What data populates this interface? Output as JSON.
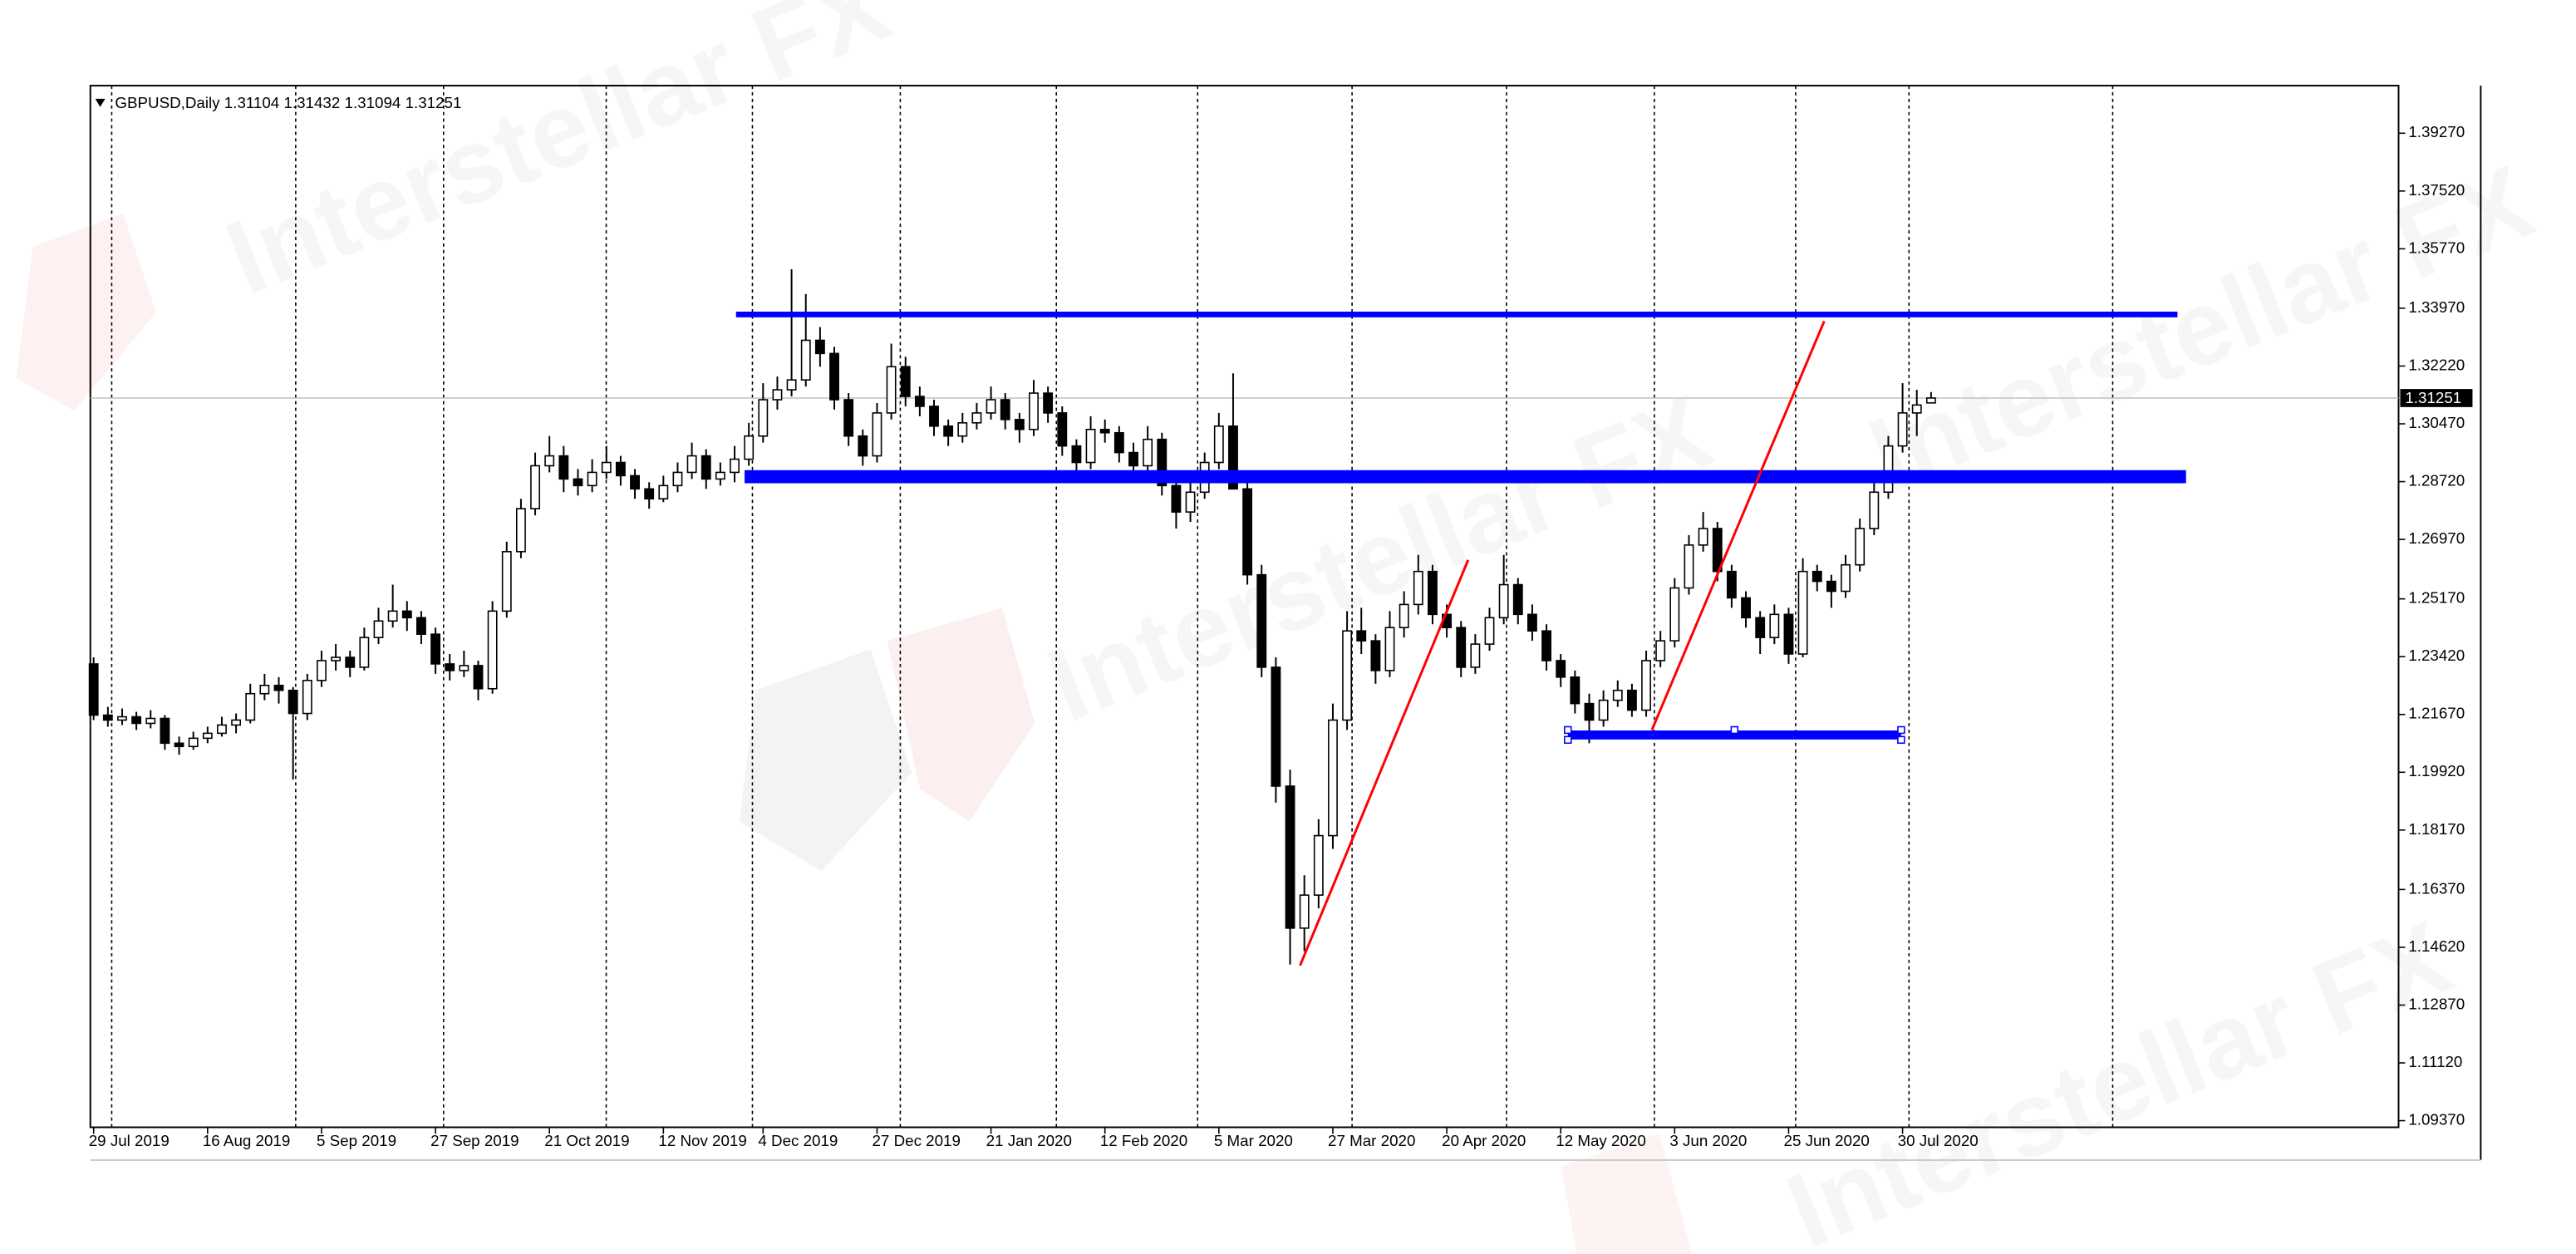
{
  "chart_data": {
    "type": "candlestick",
    "symbol": "GBPUSD,Daily",
    "watermark": "Interstellar FX",
    "ylim": [
      1.0917,
      1.4071
    ],
    "yticks": [
      {
        "value": 1.0937,
        "label": "1.09370"
      },
      {
        "value": 1.1112,
        "label": "1.11120"
      },
      {
        "value": 1.1287,
        "label": "1.12870"
      },
      {
        "value": 1.1462,
        "label": "1.14620"
      },
      {
        "value": 1.1637,
        "label": "1.16370"
      },
      {
        "value": 1.1817,
        "label": "1.18170"
      },
      {
        "value": 1.1992,
        "label": "1.19920"
      },
      {
        "value": 1.2167,
        "label": "1.21670"
      },
      {
        "value": 1.2342,
        "label": "1.23420"
      },
      {
        "value": 1.2517,
        "label": "1.25170"
      },
      {
        "value": 1.2697,
        "label": "1.26970"
      },
      {
        "value": 1.2872,
        "label": "1.28720"
      },
      {
        "value": 1.3047,
        "label": "1.30470"
      },
      {
        "value": 1.3222,
        "label": "1.32220"
      },
      {
        "value": 1.3397,
        "label": "1.33970"
      },
      {
        "value": 1.3577,
        "label": "1.35770"
      },
      {
        "value": 1.3752,
        "label": "1.37520"
      },
      {
        "value": 1.3927,
        "label": "1.39270"
      }
    ],
    "categories": [
      "29 Jul 2019",
      null,
      null,
      null,
      null,
      null,
      null,
      null,
      "16 Aug 2019",
      null,
      null,
      null,
      null,
      null,
      null,
      null,
      "5 Sep 2019",
      null,
      null,
      null,
      null,
      null,
      null,
      null,
      "27 Sep 2019",
      null,
      null,
      null,
      null,
      null,
      null,
      null,
      "21 Oct 2019",
      null,
      null,
      null,
      null,
      null,
      null,
      null,
      "12 Nov 2019",
      null,
      null,
      null,
      null,
      null,
      null,
      "4 Dec 2019",
      null,
      null,
      null,
      null,
      null,
      null,
      null,
      "27 Dec 2019",
      null,
      null,
      null,
      null,
      null,
      null,
      null,
      "21 Jan 2020",
      null,
      null,
      null,
      null,
      null,
      null,
      null,
      "12 Feb 2020",
      null,
      null,
      null,
      null,
      null,
      null,
      null,
      "5 Mar 2020",
      null,
      null,
      null,
      null,
      null,
      null,
      null,
      "27 Mar 2020",
      null,
      null,
      null,
      null,
      null,
      null,
      null,
      "20 Apr 2020",
      null,
      null,
      null,
      null,
      null,
      null,
      null,
      "12 May 2020",
      null,
      null,
      null,
      null,
      null,
      null,
      null,
      "3 Jun 2020",
      null,
      null,
      null,
      null,
      null,
      null,
      null,
      "25 Jun 2020",
      null,
      null,
      null,
      null,
      null,
      null,
      null,
      "30 Jul 2020",
      null,
      null
    ],
    "ohlc": [
      [
        1.232,
        1.234,
        1.215,
        1.2165
      ],
      [
        1.2165,
        1.219,
        1.213,
        1.215
      ],
      [
        1.215,
        1.2185,
        1.2135,
        1.216
      ],
      [
        1.216,
        1.2175,
        1.212,
        1.214
      ],
      [
        1.214,
        1.218,
        1.2125,
        1.2155
      ],
      [
        1.2155,
        1.2165,
        1.206,
        1.208
      ],
      [
        1.208,
        1.21,
        1.2045,
        1.207
      ],
      [
        1.207,
        1.2115,
        1.206,
        1.2095
      ],
      [
        1.2095,
        1.213,
        1.208,
        1.211
      ],
      [
        1.211,
        1.216,
        1.21,
        1.2135
      ],
      [
        1.2135,
        1.217,
        1.211,
        1.215
      ],
      [
        1.215,
        1.226,
        1.214,
        1.223
      ],
      [
        1.223,
        1.229,
        1.221,
        1.2255
      ],
      [
        1.2255,
        1.228,
        1.22,
        1.224
      ],
      [
        1.224,
        1.225,
        1.197,
        1.217
      ],
      [
        1.217,
        1.229,
        1.215,
        1.227
      ],
      [
        1.227,
        1.236,
        1.225,
        1.233
      ],
      [
        1.233,
        1.238,
        1.23,
        1.234
      ],
      [
        1.234,
        1.236,
        1.228,
        1.231
      ],
      [
        1.231,
        1.243,
        1.23,
        1.24
      ],
      [
        1.24,
        1.249,
        1.238,
        1.245
      ],
      [
        1.245,
        1.256,
        1.243,
        1.248
      ],
      [
        1.248,
        1.251,
        1.242,
        1.246
      ],
      [
        1.246,
        1.248,
        1.238,
        1.241
      ],
      [
        1.241,
        1.243,
        1.229,
        1.232
      ],
      [
        1.232,
        1.235,
        1.227,
        1.23
      ],
      [
        1.23,
        1.236,
        1.228,
        1.2315
      ],
      [
        1.2315,
        1.233,
        1.221,
        1.2245
      ],
      [
        1.2245,
        1.251,
        1.223,
        1.248
      ],
      [
        1.248,
        1.269,
        1.246,
        1.266
      ],
      [
        1.266,
        1.282,
        1.264,
        1.279
      ],
      [
        1.279,
        1.296,
        1.277,
        1.292
      ],
      [
        1.292,
        1.301,
        1.29,
        1.295
      ],
      [
        1.295,
        1.298,
        1.284,
        1.288
      ],
      [
        1.288,
        1.291,
        1.283,
        1.286
      ],
      [
        1.286,
        1.294,
        1.284,
        1.29
      ],
      [
        1.29,
        1.298,
        1.288,
        1.293
      ],
      [
        1.293,
        1.295,
        1.286,
        1.289
      ],
      [
        1.289,
        1.291,
        1.282,
        1.285
      ],
      [
        1.285,
        1.287,
        1.279,
        1.282
      ],
      [
        1.282,
        1.289,
        1.281,
        1.286
      ],
      [
        1.286,
        1.293,
        1.284,
        1.29
      ],
      [
        1.29,
        1.299,
        1.288,
        1.295
      ],
      [
        1.295,
        1.297,
        1.285,
        1.288
      ],
      [
        1.288,
        1.293,
        1.286,
        1.29
      ],
      [
        1.29,
        1.298,
        1.287,
        1.294
      ],
      [
        1.294,
        1.305,
        1.292,
        1.301
      ],
      [
        1.301,
        1.317,
        1.299,
        1.312
      ],
      [
        1.312,
        1.319,
        1.309,
        1.315
      ],
      [
        1.315,
        1.3515,
        1.313,
        1.318
      ],
      [
        1.318,
        1.344,
        1.316,
        1.33
      ],
      [
        1.33,
        1.334,
        1.322,
        1.326
      ],
      [
        1.326,
        1.328,
        1.309,
        1.312
      ],
      [
        1.312,
        1.314,
        1.298,
        1.301
      ],
      [
        1.301,
        1.303,
        1.292,
        1.295
      ],
      [
        1.295,
        1.311,
        1.293,
        1.308
      ],
      [
        1.308,
        1.329,
        1.306,
        1.322
      ],
      [
        1.322,
        1.325,
        1.31,
        1.313
      ],
      [
        1.313,
        1.316,
        1.307,
        1.31
      ],
      [
        1.31,
        1.312,
        1.301,
        1.304
      ],
      [
        1.304,
        1.306,
        1.298,
        1.301
      ],
      [
        1.301,
        1.308,
        1.299,
        1.305
      ],
      [
        1.305,
        1.311,
        1.303,
        1.308
      ],
      [
        1.308,
        1.316,
        1.306,
        1.312
      ],
      [
        1.312,
        1.314,
        1.303,
        1.306
      ],
      [
        1.306,
        1.308,
        1.299,
        1.303
      ],
      [
        1.303,
        1.318,
        1.301,
        1.314
      ],
      [
        1.314,
        1.316,
        1.305,
        1.308
      ],
      [
        1.308,
        1.31,
        1.295,
        1.298
      ],
      [
        1.298,
        1.3,
        1.288,
        1.293
      ],
      [
        1.293,
        1.307,
        1.291,
        1.303
      ],
      [
        1.303,
        1.306,
        1.299,
        1.302
      ],
      [
        1.302,
        1.304,
        1.293,
        1.296
      ],
      [
        1.296,
        1.299,
        1.287,
        1.292
      ],
      [
        1.292,
        1.304,
        1.29,
        1.3
      ],
      [
        1.3,
        1.302,
        1.283,
        1.286
      ],
      [
        1.286,
        1.288,
        1.273,
        1.278
      ],
      [
        1.278,
        1.287,
        1.275,
        1.284
      ],
      [
        1.284,
        1.296,
        1.282,
        1.293
      ],
      [
        1.293,
        1.308,
        1.291,
        1.304
      ],
      [
        1.304,
        1.32,
        1.286,
        1.285
      ],
      [
        1.285,
        1.288,
        1.256,
        1.259
      ],
      [
        1.259,
        1.262,
        1.228,
        1.231
      ],
      [
        1.231,
        1.234,
        1.19,
        1.195
      ],
      [
        1.195,
        1.2,
        1.141,
        1.152
      ],
      [
        1.152,
        1.168,
        1.145,
        1.162
      ],
      [
        1.162,
        1.185,
        1.158,
        1.18
      ],
      [
        1.18,
        1.22,
        1.176,
        1.215
      ],
      [
        1.215,
        1.248,
        1.212,
        1.242
      ],
      [
        1.242,
        1.249,
        1.235,
        1.239
      ],
      [
        1.239,
        1.241,
        1.226,
        1.23
      ],
      [
        1.23,
        1.248,
        1.228,
        1.243
      ],
      [
        1.243,
        1.254,
        1.24,
        1.25
      ],
      [
        1.25,
        1.265,
        1.247,
        1.26
      ],
      [
        1.26,
        1.262,
        1.244,
        1.247
      ],
      [
        1.247,
        1.25,
        1.24,
        1.243
      ],
      [
        1.243,
        1.245,
        1.228,
        1.231
      ],
      [
        1.231,
        1.241,
        1.229,
        1.238
      ],
      [
        1.238,
        1.249,
        1.236,
        1.246
      ],
      [
        1.246,
        1.265,
        1.244,
        1.256
      ],
      [
        1.256,
        1.258,
        1.244,
        1.247
      ],
      [
        1.247,
        1.25,
        1.239,
        1.242
      ],
      [
        1.242,
        1.244,
        1.23,
        1.233
      ],
      [
        1.233,
        1.235,
        1.225,
        1.228
      ],
      [
        1.228,
        1.23,
        1.217,
        1.22
      ],
      [
        1.22,
        1.223,
        1.208,
        1.215
      ],
      [
        1.215,
        1.224,
        1.213,
        1.221
      ],
      [
        1.221,
        1.227,
        1.219,
        1.224
      ],
      [
        1.224,
        1.226,
        1.216,
        1.218
      ],
      [
        1.218,
        1.236,
        1.216,
        1.233
      ],
      [
        1.233,
        1.242,
        1.231,
        1.239
      ],
      [
        1.239,
        1.258,
        1.237,
        1.255
      ],
      [
        1.255,
        1.271,
        1.253,
        1.268
      ],
      [
        1.268,
        1.278,
        1.266,
        1.273
      ],
      [
        1.273,
        1.275,
        1.257,
        1.26
      ],
      [
        1.26,
        1.262,
        1.249,
        1.252
      ],
      [
        1.252,
        1.254,
        1.243,
        1.246
      ],
      [
        1.246,
        1.248,
        1.235,
        1.24
      ],
      [
        1.24,
        1.25,
        1.238,
        1.247
      ],
      [
        1.247,
        1.249,
        1.232,
        1.235
      ],
      [
        1.235,
        1.264,
        1.234,
        1.26
      ],
      [
        1.26,
        1.262,
        1.254,
        1.257
      ],
      [
        1.257,
        1.259,
        1.249,
        1.254
      ],
      [
        1.254,
        1.265,
        1.252,
        1.262
      ],
      [
        1.262,
        1.276,
        1.26,
        1.273
      ],
      [
        1.273,
        1.287,
        1.271,
        1.284
      ],
      [
        1.284,
        1.301,
        1.282,
        1.298
      ],
      [
        1.298,
        1.317,
        1.296,
        1.308
      ],
      [
        1.308,
        1.315,
        1.301,
        1.3104
      ],
      [
        1.31104,
        1.31432,
        1.31094,
        1.31251
      ]
    ],
    "up_color": "#ffffff",
    "down_color": "#000000",
    "hlines": [
      {
        "price": 1.3378,
        "from": 45.1,
        "to": 146.3,
        "color": "#0000ff"
      },
      {
        "price": 1.2887,
        "from": 45.7,
        "to": 146.9,
        "color": "#0000ff"
      },
      {
        "price": 1.2105,
        "from": 103.5,
        "to": 126.9,
        "color": "#0000ff"
      }
    ],
    "trendlines": [
      {
        "from": [
          84.7,
          1.1407
        ],
        "to": [
          96.5,
          1.2635
        ],
        "color": "#ff0000"
      },
      {
        "from": [
          109.4,
          1.212
        ],
        "to": [
          121.5,
          1.3358
        ],
        "color": "#ff0000"
      }
    ]
  }
}
